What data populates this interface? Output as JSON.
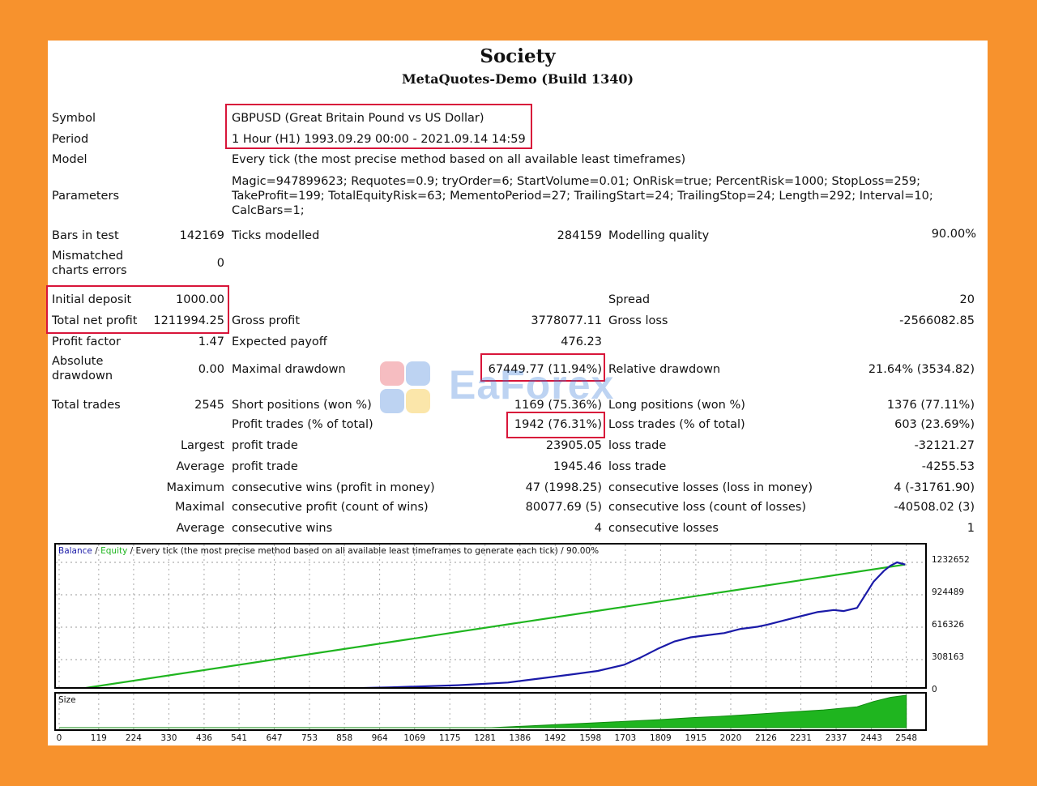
{
  "report": {
    "title": "Society",
    "subtitle": "MetaQuotes-Demo (Build 1340)"
  },
  "settings": {
    "symbol_label": "Symbol",
    "symbol_value": "GBPUSD (Great Britain Pound vs US Dollar)",
    "period_label": "Period",
    "period_value": "1 Hour (H1) 1993.09.29 00:00 - 2021.09.14 14:59",
    "model_label": "Model",
    "model_value": "Every tick (the most precise method based on all available least timeframes)",
    "parameters_label": "Parameters",
    "parameters_lines": [
      "Magic=947899623; Requotes=0.9; tryOrder=6; StartVolume=0.01; OnRisk=true; PercentRisk=1000; StopLoss=259;",
      "TakeProfit=199; TotalEquityRisk=63; MementoPeriod=27; TrailingStart=24; TrailingStop=24; Length=292; Interval=10;",
      "CalcBars=1;"
    ]
  },
  "stats": {
    "bars_label": "Bars in test",
    "bars_value": "142169",
    "ticks_label": "Ticks modelled",
    "ticks_value": "284159",
    "quality_label": "Modelling quality",
    "quality_value": "90.00%",
    "mismatch_label_1": "Mismatched",
    "mismatch_label_2": "charts errors",
    "mismatch_value": "0",
    "deposit_label": "Initial deposit",
    "deposit_value": "1000.00",
    "spread_label": "Spread",
    "spread_value": "20",
    "net_label": "Total net profit",
    "net_value": "1211994.25",
    "gross_profit_label": "Gross profit",
    "gross_profit_value": "3778077.11",
    "gross_loss_label": "Gross loss",
    "gross_loss_value": "-2566082.85",
    "pf_label": "Profit factor",
    "pf_value": "1.47",
    "payoff_label": "Expected payoff",
    "payoff_value": "476.23",
    "abs_dd_label_1": "Absolute",
    "abs_dd_label_2": "drawdown",
    "abs_dd_value": "0.00",
    "max_dd_label": "Maximal drawdown",
    "max_dd_value": "67449.77 (11.94%)",
    "rel_dd_label": "Relative drawdown",
    "rel_dd_value": "21.64% (3534.82)",
    "trades_label": "Total trades",
    "trades_value": "2545",
    "short_label": "Short positions (won %)",
    "short_value": "1169 (75.36%)",
    "long_label": "Long positions (won %)",
    "long_value": "1376 (77.11%)",
    "profit_trades_label": "Profit trades (% of total)",
    "profit_trades_value": "1942 (76.31%)",
    "loss_trades_label": "Loss trades (% of total)",
    "loss_trades_value": "603 (23.69%)",
    "largest_label": "Largest",
    "largest_profit_label": "profit trade",
    "largest_profit_value": "23905.05",
    "largest_loss_label": "loss trade",
    "largest_loss_value": "-32121.27",
    "average_label": "Average",
    "avg_profit_label": "profit trade",
    "avg_profit_value": "1945.46",
    "avg_loss_label": "loss trade",
    "avg_loss_value": "-4255.53",
    "maximum_label": "Maximum",
    "max_wins_label": "consecutive wins (profit in money)",
    "max_wins_value": "47 (1998.25)",
    "max_losses_label": "consecutive losses (loss in money)",
    "max_losses_value": "4 (-31761.90)",
    "maximal_label": "Maximal",
    "maximal_profit_label": "consecutive profit (count of wins)",
    "maximal_profit_value": "80077.69 (5)",
    "maximal_loss_label": "consecutive loss (count of losses)",
    "maximal_loss_value": "-40508.02 (3)",
    "average2_label": "Average",
    "avg_wins_label": "consecutive wins",
    "avg_wins_value": "4",
    "avg_losses_label": "consecutive losses",
    "avg_losses_value": "1"
  },
  "watermark": "EaForex",
  "colors": {
    "highlight": "#d8153a",
    "balance": "#1a1aa8",
    "equity": "#1fb51f",
    "background": "#f7922d"
  },
  "chart_data": [
    {
      "type": "line",
      "caption_balance": "Balance",
      "caption_sep1": " / ",
      "caption_equity": "Equity",
      "caption_rest": " / Every tick (the most precise method based on all available least timeframes to generate each tick) / 90.00%",
      "y_ticks": [
        "1232652",
        "924489",
        "616326",
        "308163",
        "0"
      ],
      "ylim": [
        0,
        1232652
      ],
      "x_ticks": [
        "0",
        "119",
        "224",
        "330",
        "436",
        "541",
        "647",
        "753",
        "858",
        "964",
        "1069",
        "1175",
        "1281",
        "1386",
        "1492",
        "1598",
        "1703",
        "1809",
        "1915",
        "2020",
        "2126",
        "2231",
        "2337",
        "2443",
        "2548"
      ],
      "xlim": [
        0,
        2600
      ],
      "series": [
        {
          "name": "Balance",
          "x": [
            0,
            200,
            500,
            800,
            1000,
            1200,
            1350,
            1450,
            1550,
            1620,
            1700,
            1750,
            1800,
            1850,
            1900,
            1950,
            2000,
            2050,
            2100,
            2130,
            2180,
            2230,
            2280,
            2330,
            2360,
            2400,
            2430,
            2450,
            2480,
            2500,
            2520,
            2545
          ],
          "y": [
            1000,
            8000,
            20000,
            30000,
            45000,
            65000,
            90000,
            130000,
            170000,
            200000,
            260000,
            330000,
            410000,
            480000,
            520000,
            540000,
            560000,
            600000,
            620000,
            640000,
            680000,
            720000,
            760000,
            780000,
            770000,
            800000,
            950000,
            1050000,
            1150000,
            1200000,
            1232652,
            1211994
          ]
        },
        {
          "name": "Equity",
          "x": [
            0,
            2545
          ],
          "y": [
            1000,
            1211994
          ]
        }
      ]
    },
    {
      "type": "area",
      "caption": "Size",
      "series": [
        {
          "name": "Size",
          "x": [
            0,
            1300,
            1400,
            1500,
            1600,
            1700,
            1800,
            1900,
            2000,
            2100,
            2200,
            2300,
            2400,
            2450,
            2500,
            2548
          ],
          "y": [
            0,
            0,
            3,
            6,
            9,
            12,
            15,
            19,
            22,
            26,
            30,
            34,
            40,
            50,
            58,
            62
          ]
        }
      ]
    }
  ]
}
